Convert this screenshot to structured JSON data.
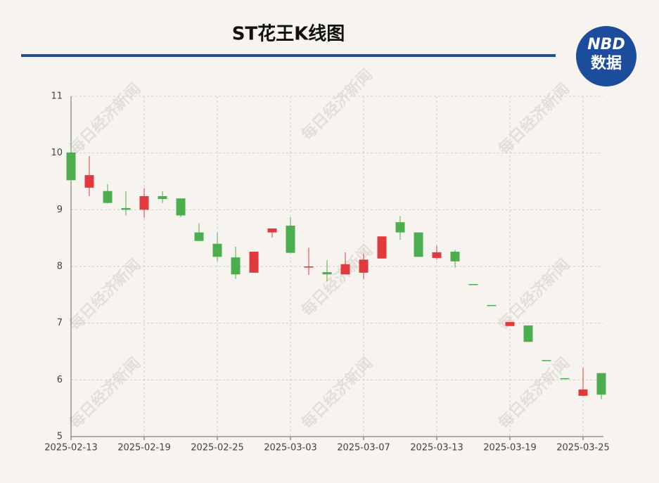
{
  "chart_data": {
    "type": "candlestick",
    "title": "ST花王K线图",
    "logo": {
      "top": "NBD",
      "bottom": "数据"
    },
    "watermark": "每日经济新闻",
    "categories": [
      "2025-02-13",
      null,
      null,
      null,
      "2025-02-19",
      null,
      null,
      null,
      "2025-02-25",
      null,
      null,
      null,
      "2025-03-03",
      null,
      null,
      null,
      "2025-03-07",
      null,
      null,
      null,
      "2025-03-13",
      null,
      null,
      null,
      "2025-03-19",
      null,
      null,
      null,
      "2025-03-25",
      null
    ],
    "open": [
      10.01,
      9.39,
      9.33,
      9.03,
      9.0,
      9.24,
      9.2,
      8.6,
      8.4,
      8.16,
      7.89,
      8.6,
      8.72,
      7.98,
      7.9,
      7.86,
      7.89,
      8.14,
      8.78,
      8.6,
      8.15,
      8.26,
      7.69,
      7.32,
      6.95,
      6.96,
      6.35,
      6.03,
      5.72,
      6.12
    ],
    "high": [
      10.2,
      9.95,
      9.45,
      9.33,
      9.38,
      9.33,
      9.2,
      8.76,
      8.6,
      8.35,
      8.26,
      8.67,
      8.87,
      8.33,
      8.11,
      8.25,
      8.22,
      8.53,
      8.89,
      8.6,
      8.37,
      8.29,
      7.69,
      7.32,
      7.02,
      6.96,
      6.35,
      6.03,
      6.21,
      6.12
    ],
    "low": [
      9.5,
      9.24,
      9.11,
      8.9,
      8.86,
      9.12,
      8.87,
      8.45,
      8.09,
      7.78,
      7.89,
      8.51,
      8.24,
      7.85,
      7.74,
      7.86,
      7.78,
      8.14,
      8.47,
      8.17,
      8.12,
      7.98,
      7.69,
      7.32,
      6.95,
      6.67,
      6.35,
      6.03,
      5.72,
      5.66
    ],
    "close": [
      9.52,
      9.61,
      9.12,
      9.0,
      9.24,
      9.19,
      8.9,
      8.45,
      8.17,
      7.86,
      8.26,
      8.67,
      8.24,
      8.0,
      7.86,
      8.04,
      8.12,
      8.53,
      8.6,
      8.17,
      8.25,
      8.09,
      7.69,
      7.32,
      7.02,
      6.67,
      6.35,
      6.03,
      5.83,
      5.74
    ],
    "up_color": "#e0393e",
    "down_color": "#4cae4f",
    "ylim": [
      5,
      11
    ],
    "yticks": [
      5,
      6,
      7,
      8,
      9,
      10,
      11
    ],
    "grid": true
  }
}
